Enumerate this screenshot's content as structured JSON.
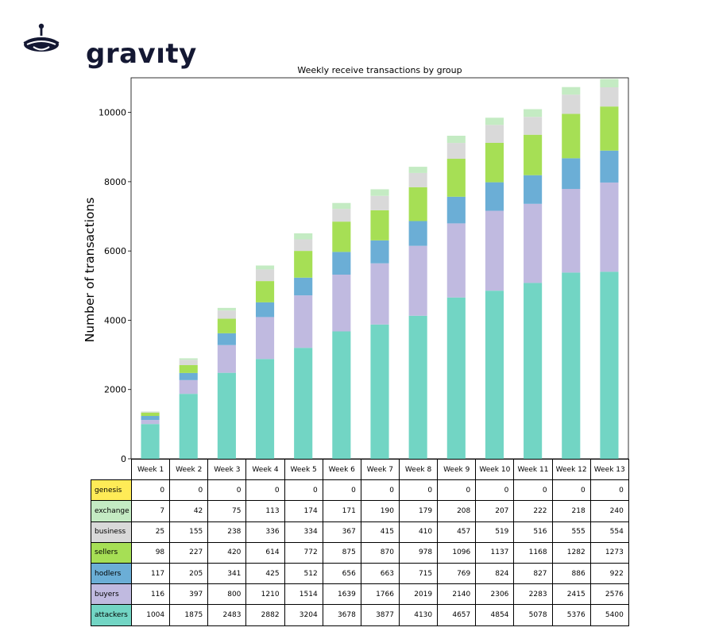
{
  "logo": {
    "text": "gravıty",
    "color": "#141833"
  },
  "chart_data": {
    "type": "bar",
    "stacked": true,
    "title": "Weekly receive transactions by group",
    "xlabel": "",
    "ylabel": "Number of transactions",
    "ylim": [
      0,
      11000
    ],
    "yticks": [
      0,
      2000,
      4000,
      6000,
      8000,
      10000
    ],
    "grid": false,
    "categories": [
      "Week 1",
      "Week 2",
      "Week 3",
      "Week 4",
      "Week 5",
      "Week 6",
      "Week 7",
      "Week 8",
      "Week 9",
      "Week 10",
      "Week 11",
      "Week 12",
      "Week 13"
    ],
    "series": [
      {
        "name": "attackers",
        "color": "#72d5c4",
        "values": [
          1004,
          1875,
          2483,
          2882,
          3204,
          3678,
          3877,
          4130,
          4657,
          4854,
          5078,
          5376,
          5400
        ]
      },
      {
        "name": "buyers",
        "color": "#c0bae0",
        "values": [
          116,
          397,
          800,
          1210,
          1514,
          1639,
          1766,
          2019,
          2140,
          2306,
          2283,
          2415,
          2576
        ]
      },
      {
        "name": "hodlers",
        "color": "#6baed6",
        "values": [
          117,
          205,
          341,
          425,
          512,
          656,
          663,
          715,
          769,
          824,
          827,
          886,
          922
        ]
      },
      {
        "name": "sellers",
        "color": "#a6df55",
        "values": [
          98,
          227,
          420,
          614,
          772,
          875,
          870,
          978,
          1096,
          1137,
          1168,
          1282,
          1273
        ]
      },
      {
        "name": "business",
        "color": "#d9d9d9",
        "values": [
          25,
          155,
          238,
          336,
          334,
          367,
          415,
          410,
          457,
          519,
          516,
          555,
          554
        ]
      },
      {
        "name": "exchange",
        "color": "#c4ebc3",
        "values": [
          7,
          42,
          75,
          113,
          174,
          171,
          190,
          179,
          208,
          207,
          222,
          218,
          240
        ]
      },
      {
        "name": "genesis",
        "color": "#ffeb57",
        "values": [
          0,
          0,
          0,
          0,
          0,
          0,
          0,
          0,
          0,
          0,
          0,
          0,
          0
        ]
      }
    ],
    "table_row_order": [
      "genesis",
      "exchange",
      "business",
      "sellers",
      "hodlers",
      "buyers",
      "attackers"
    ]
  }
}
